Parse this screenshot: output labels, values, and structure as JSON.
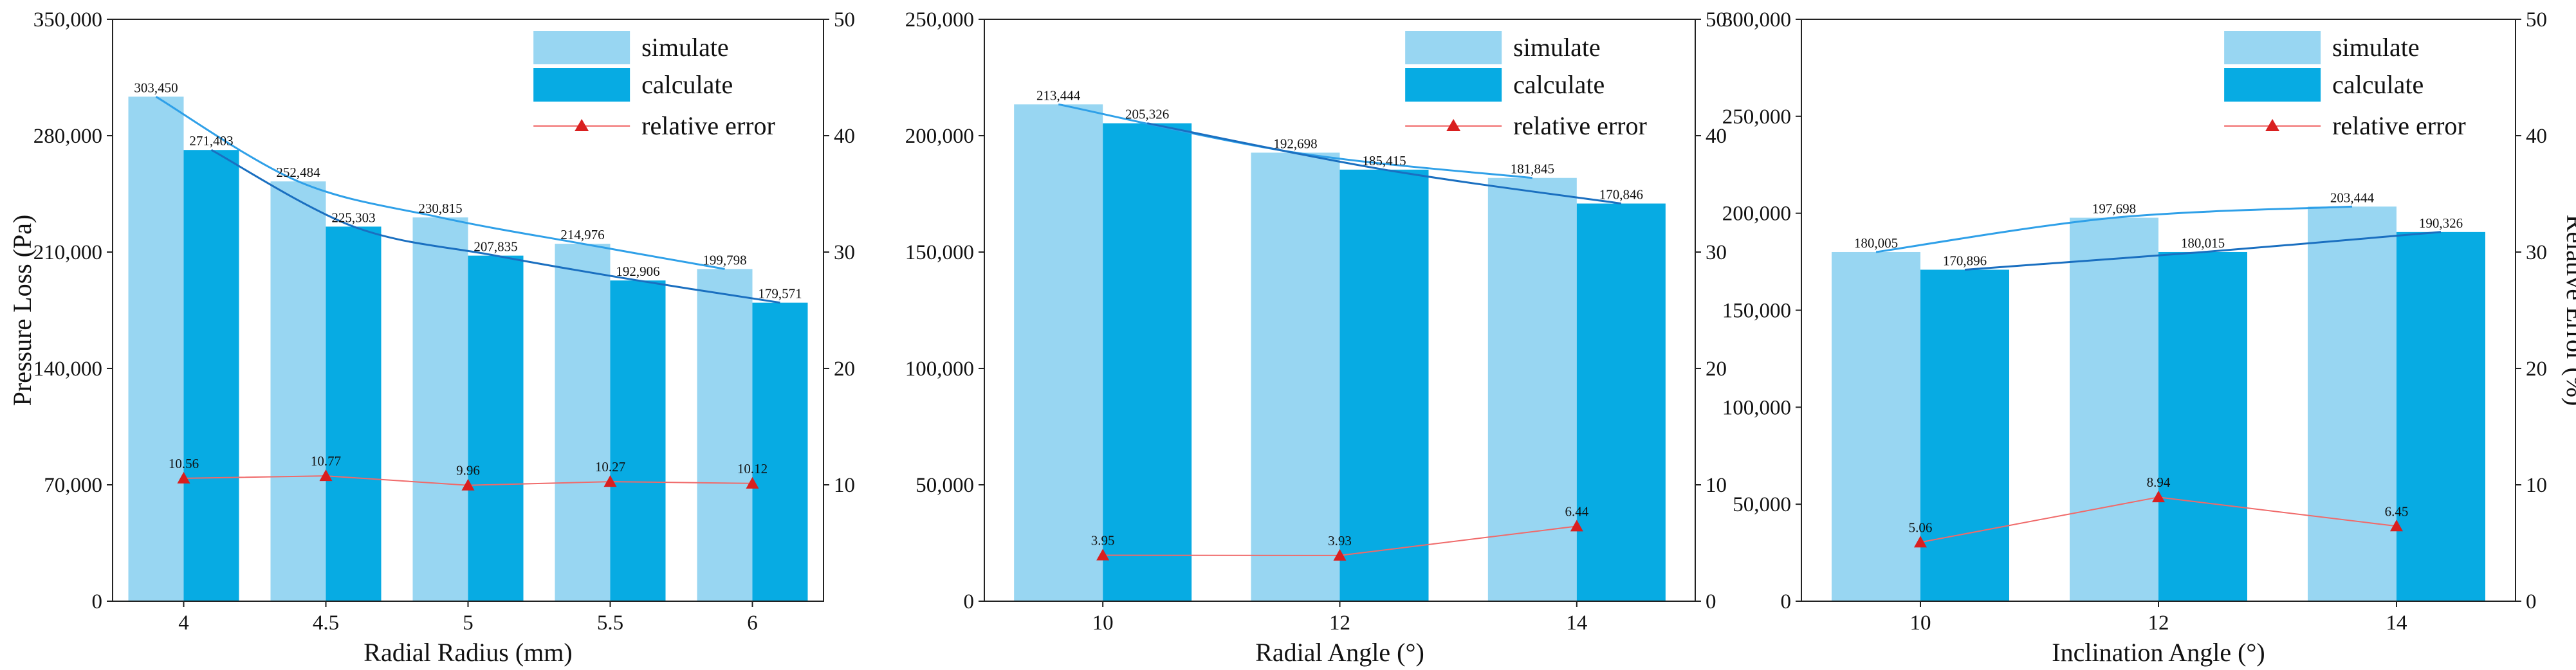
{
  "colors": {
    "simulate": "#98d6f2",
    "calculate": "#07abe3",
    "error": "#d91f1f",
    "error_line": "#f06a6a",
    "trend_sim": "#2fa0e8",
    "trend_calc": "#1a6fc0",
    "axis": "#222222"
  },
  "chart_data": [
    {
      "type": "bar",
      "xlabel": "Radial Radius (mm)",
      "ylabel": "Pressure Loss (Pa)",
      "y2label": "",
      "categories": [
        "4",
        "4.5",
        "5",
        "5.5",
        "6"
      ],
      "series": [
        {
          "name": "simulate",
          "values": [
            303450,
            252484,
            230815,
            214976,
            199798
          ],
          "labels": [
            "303,450",
            "252,484",
            "230,815",
            "214,976",
            "199,798"
          ]
        },
        {
          "name": "calculate",
          "values": [
            271403,
            225303,
            207835,
            192906,
            179571
          ],
          "labels": [
            "271,403",
            "225,303",
            "207,835",
            "192,906",
            "179,571"
          ]
        }
      ],
      "error": {
        "name": "relative error",
        "values": [
          10.56,
          10.77,
          9.96,
          10.27,
          10.12
        ],
        "labels": [
          "10.56",
          "10.77",
          "9.96",
          "10.27",
          "10.12"
        ]
      },
      "ylim": [
        0,
        350000
      ],
      "yticks": [
        "0",
        "70,000",
        "140,000",
        "210,000",
        "280,000",
        "350,000"
      ],
      "y2lim": [
        0,
        50
      ],
      "y2ticks": [
        "10",
        "20",
        "30",
        "40",
        "50"
      ],
      "legend": [
        "simulate",
        "calculate",
        "relative error"
      ]
    },
    {
      "type": "bar",
      "xlabel": "Radial Angle  (°)",
      "ylabel": "",
      "y2label": "",
      "categories": [
        "10",
        "12",
        "14"
      ],
      "series": [
        {
          "name": "simulate",
          "values": [
            213444,
            192698,
            181845
          ],
          "labels": [
            "213,444",
            "192,698",
            "181,845"
          ]
        },
        {
          "name": "calculate",
          "values": [
            205326,
            185415,
            170846
          ],
          "labels": [
            "205,326",
            "185,415",
            "170,846"
          ]
        }
      ],
      "error": {
        "name": "relative error",
        "values": [
          3.95,
          3.93,
          6.44
        ],
        "labels": [
          "3.95",
          "3.93",
          "6.44"
        ]
      },
      "ylim": [
        0,
        250000
      ],
      "yticks": [
        "0",
        "50,000",
        "100,000",
        "150,000",
        "200,000",
        "250,000"
      ],
      "y2lim": [
        0,
        50
      ],
      "y2ticks": [
        "0",
        "10",
        "20",
        "30",
        "40",
        "50"
      ],
      "legend": [
        "simulate",
        "calculate",
        "relative error"
      ]
    },
    {
      "type": "bar",
      "xlabel": "Inclination Angle (°)",
      "ylabel": "",
      "y2label": "Relative Error (%)",
      "categories": [
        "10",
        "12",
        "14"
      ],
      "series": [
        {
          "name": "simulate",
          "values": [
            180005,
            197698,
            203444
          ],
          "labels": [
            "180,005",
            "197,698",
            "203,444"
          ]
        },
        {
          "name": "calculate",
          "values": [
            170896,
            180015,
            190326
          ],
          "labels": [
            "170,896",
            "180,015",
            "190,326"
          ]
        }
      ],
      "error": {
        "name": "relative error",
        "values": [
          5.06,
          8.94,
          6.45
        ],
        "labels": [
          "5.06",
          "8.94",
          "6.45"
        ]
      },
      "ylim": [
        0,
        300000
      ],
      "yticks": [
        "0",
        "50,000",
        "100,000",
        "150,000",
        "200,000",
        "250,000",
        "300,000"
      ],
      "y2lim": [
        0,
        50
      ],
      "y2ticks": [
        "0",
        "10",
        "20",
        "30",
        "40",
        "50"
      ],
      "legend": [
        "simulate",
        "calculate",
        "relative error"
      ]
    }
  ]
}
